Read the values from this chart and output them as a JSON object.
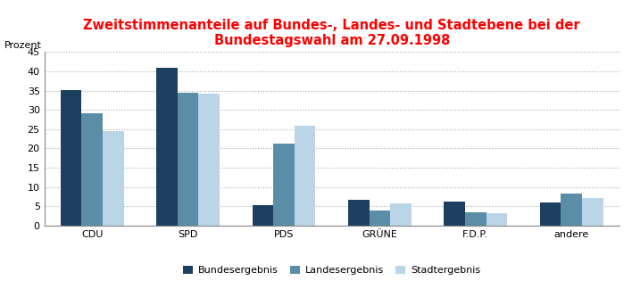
{
  "title_line1": "Zweitstimmenanteile auf Bundes-, Landes- und Stadtebene bei der",
  "title_line2": "Bundestagswahl am 27.09.1998",
  "title_color": "#ff0000",
  "ylabel": "Prozent",
  "categories": [
    "CDU",
    "SPD",
    "PDS",
    "GRÜNE",
    "F.D.P.",
    "andere"
  ],
  "series": {
    "Bundesergebnis": [
      35.1,
      40.9,
      5.2,
      6.7,
      6.2,
      5.9
    ],
    "Landesergebnis": [
      29.0,
      34.5,
      21.2,
      3.9,
      3.5,
      8.2
    ],
    "Stadtergebnis": [
      24.4,
      34.2,
      25.8,
      5.8,
      3.1,
      7.0
    ]
  },
  "bar_colors": {
    "Bundesergebnis": "#1e4060",
    "Landesergebnis": "#5a8ea6",
    "Stadtergebnis": "#bad4e8"
  },
  "ylim": [
    0,
    45
  ],
  "yticks": [
    0,
    5,
    10,
    15,
    20,
    25,
    30,
    35,
    40,
    45
  ],
  "background_color": "#ffffff",
  "bar_width": 0.22,
  "grid_color": "#aaaaaa",
  "title_fontsize": 10.5,
  "label_fontsize": 8,
  "tick_fontsize": 8,
  "legend_fontsize": 8
}
